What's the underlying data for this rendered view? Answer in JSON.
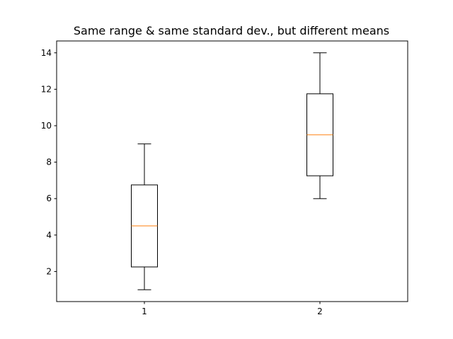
{
  "chart_data": {
    "type": "box",
    "title": "Same range & same standard dev., but different means",
    "xlabel": "",
    "ylabel": "",
    "categories": [
      "1",
      "2"
    ],
    "boxes": [
      {
        "category": "1",
        "whisker_low": 1,
        "q1": 2.25,
        "median": 4.5,
        "q3": 6.75,
        "whisker_high": 9
      },
      {
        "category": "2",
        "whisker_low": 6,
        "q1": 7.25,
        "median": 9.5,
        "q3": 11.75,
        "whisker_high": 14
      }
    ],
    "ylim": [
      0.35,
      14.65
    ],
    "xlim": [
      0.5,
      2.5
    ],
    "yticks": [
      2,
      4,
      6,
      8,
      10,
      12,
      14
    ],
    "grid": false,
    "colors": {
      "box": "#000000",
      "median": "#ff7f0e",
      "axes": "#000000"
    }
  }
}
